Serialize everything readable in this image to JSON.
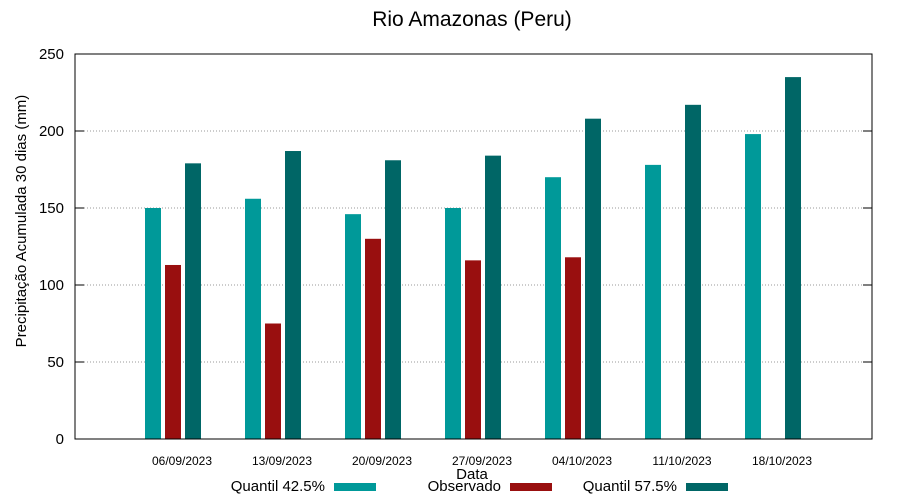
{
  "chart_data": {
    "type": "bar",
    "title": "Rio Amazonas (Peru)",
    "xlabel": "Data",
    "ylabel": "Precipitação Acumulada 30 dias (mm)",
    "ylim": [
      0,
      250
    ],
    "yticks": [
      "0",
      "50",
      "100",
      "150",
      "200",
      "250"
    ],
    "categories": [
      "06/09/2023",
      "13/09/2023",
      "20/09/2023",
      "27/09/2023",
      "04/10/2023",
      "11/10/2023",
      "18/10/2023"
    ],
    "series": [
      {
        "name": "Quantil 42.5%",
        "color": "#009999",
        "values": [
          150,
          156,
          146,
          150,
          170,
          178,
          198
        ]
      },
      {
        "name": "Observado",
        "color": "#990f0f",
        "values": [
          113,
          75,
          130,
          116,
          118,
          null,
          null
        ]
      },
      {
        "name": "Quantil 57.5%",
        "color": "#006666",
        "values": [
          179,
          187,
          181,
          184,
          208,
          217,
          235
        ]
      }
    ],
    "grid": "horizontal-dotted",
    "legend_position": "bottom"
  }
}
